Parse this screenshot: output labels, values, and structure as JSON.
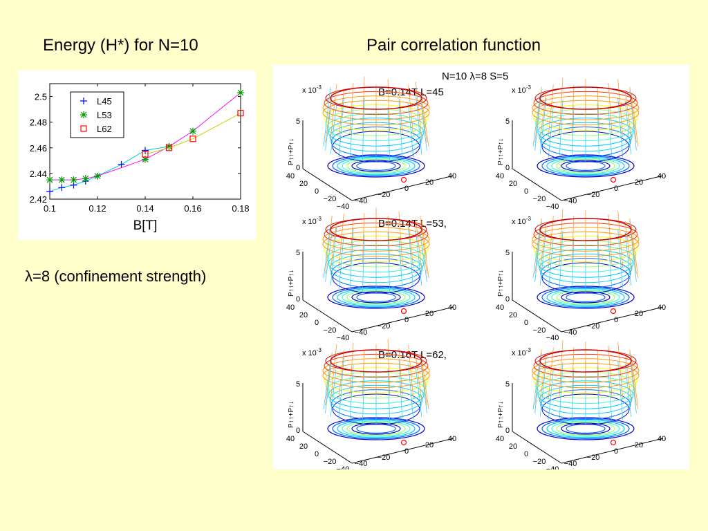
{
  "slide": {
    "left_title": "Energy (H*) for N=10",
    "right_title": "Pair correlation function",
    "note_lambda": "λ",
    "note_rest": "=8 (confinement strength)"
  },
  "chart_data": {
    "type": "line",
    "xlabel": "B[T]",
    "ylabel": "",
    "xlim": [
      0.1,
      0.18
    ],
    "ylim": [
      2.42,
      2.51
    ],
    "xticks": [
      0.1,
      0.12,
      0.14,
      0.16,
      0.18
    ],
    "xtick_labels": [
      "0.1",
      "0.12",
      "0.14",
      "0.16",
      "0.18"
    ],
    "yticks": [
      2.42,
      2.44,
      2.46,
      2.48,
      2.5
    ],
    "ytick_labels": [
      "2.42",
      "2.44",
      "2.46",
      "2.48",
      "2.5"
    ],
    "grid": false,
    "legend_position": "top-left",
    "series": [
      {
        "name": "L45",
        "color": "#00cccc",
        "marker": "plus",
        "marker_color": "#0000ff",
        "x": [
          0.1,
          0.105,
          0.11,
          0.115,
          0.12,
          0.13,
          0.14,
          0.15
        ],
        "y": [
          2.426,
          2.429,
          2.431,
          2.434,
          2.438,
          2.447,
          2.458,
          2.461
        ]
      },
      {
        "name": "L53",
        "color": "#ff00ff",
        "marker": "star",
        "marker_color": "#009900",
        "x": [
          0.1,
          0.105,
          0.11,
          0.115,
          0.12,
          0.14,
          0.15,
          0.16,
          0.18
        ],
        "y": [
          2.435,
          2.435,
          2.435,
          2.436,
          2.438,
          2.451,
          2.461,
          2.473,
          2.503
        ]
      },
      {
        "name": "L62",
        "color": "#cccc00",
        "marker": "square",
        "marker_color": "#ff0000",
        "x": [
          0.14,
          0.15,
          0.16,
          0.18
        ],
        "y": [
          2.455,
          2.46,
          2.467,
          2.487
        ]
      }
    ]
  },
  "pair_figure": {
    "header_prefix": "N=10 ",
    "header_lambda": "λ",
    "header_suffix": "=8 S=5",
    "panels": [
      {
        "label": "B=0.14T   L=45"
      },
      {
        "label": "B=0.14T   L=53,"
      },
      {
        "label": "B=0.16T   L=62,"
      }
    ],
    "scale_label": "x 10",
    "scale_exp": "-3",
    "z_axis_label": "P↑↑+P↑↓",
    "z_ticks": [
      "5",
      "0"
    ],
    "y_ticks": [
      "40",
      "20",
      "0",
      "−20",
      "−40"
    ],
    "x_ticks": [
      "−40",
      "−20",
      "0",
      "20",
      "40"
    ]
  }
}
